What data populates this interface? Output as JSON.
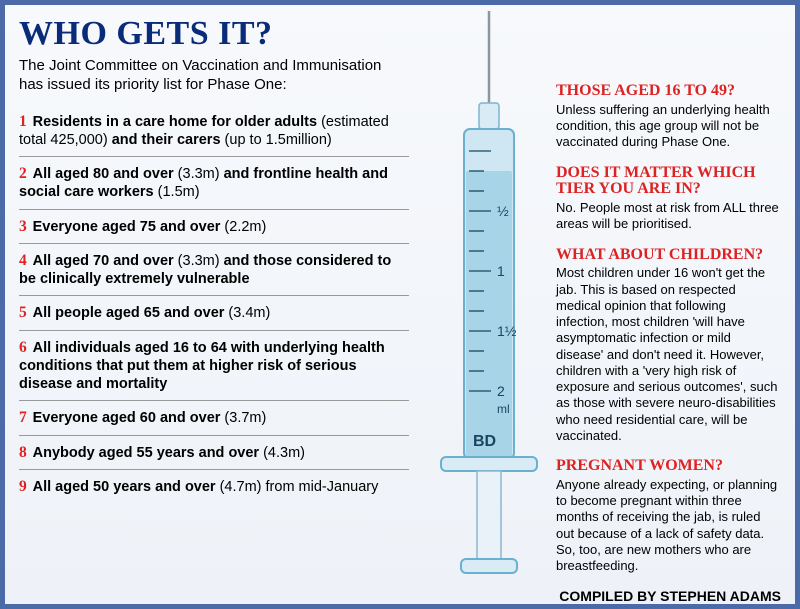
{
  "title": "WHO GETS IT?",
  "title_fontsize": 34,
  "subtitle": "The Joint Committee on Vaccination and Immunisation has issued its priority list for Phase One:",
  "subtitle_fontsize": 15,
  "item_fontsize": 14.5,
  "qa_title_fontsize": 16,
  "qa_body_fontsize": 13,
  "compiled_fontsize": 14,
  "colors": {
    "border": "#4a6ba8",
    "title": "#0a2b7a",
    "red": "#d22",
    "syringe_body": "#bde0ef",
    "syringe_edge": "#6ab0d0",
    "liquid": "#a8d4e8",
    "needle": "#8a96a0"
  },
  "list": [
    {
      "num": "1",
      "bold1": "Residents in a care home for older adults",
      "paren1": " (estimated total 425,000) ",
      "bold2": "and their carers",
      "paren2": " (up to 1.5million)"
    },
    {
      "num": "2",
      "bold1": "All aged 80 and over",
      "paren1": " (3.3m) ",
      "bold2": "and frontline health and social care workers",
      "paren2": " (1.5m)"
    },
    {
      "num": "3",
      "bold1": "Everyone aged 75 and over",
      "paren1": "  (2.2m)",
      "bold2": "",
      "paren2": ""
    },
    {
      "num": "4",
      "bold1": "All aged 70 and over",
      "paren1": " (3.3m) ",
      "bold2": "and those considered to be clinically extremely vulnerable",
      "paren2": ""
    },
    {
      "num": "5",
      "bold1": "All people aged 65 and over",
      "paren1": " (3.4m)",
      "bold2": "",
      "paren2": ""
    },
    {
      "num": "6",
      "bold1": "All individuals aged 16 to 64 with underlying health conditions that put them at higher risk of serious disease and mortality",
      "paren1": "",
      "bold2": "",
      "paren2": ""
    },
    {
      "num": "7",
      "bold1": "Everyone aged 60 and over",
      "paren1": " (3.7m)",
      "bold2": "",
      "paren2": ""
    },
    {
      "num": "8",
      "bold1": "Anybody aged 55 years and over",
      "paren1": " (4.3m)",
      "bold2": "",
      "paren2": ""
    },
    {
      "num": "9",
      "bold1": "All aged 50 years and over",
      "paren1": " (4.7m) from mid-January",
      "bold2": "",
      "paren2": ""
    }
  ],
  "qa": [
    {
      "title": "THOSE AGED 16 TO 49?",
      "body": "Unless suffering an underlying health condition, this age group will not be vaccinated during Phase One."
    },
    {
      "title": "DOES IT MATTER WHICH TIER YOU ARE IN?",
      "body": "No. People most at risk from ALL three areas will be prioritised."
    },
    {
      "title": "WHAT ABOUT CHILDREN?",
      "body": "Most children under 16 won't get the jab. This is based on respected medical opinion that following infection, most children 'will have asymptomatic infection or mild disease' and don't need it. However, children with a 'very high risk of exposure and serious outcomes', such as those with severe neuro-disabilities who need residential care, will be vaccinated."
    },
    {
      "title": "PREGNANT WOMEN?",
      "body": "Anyone already expecting, or planning to become pregnant within three months of receiving the jab, is ruled out because of a lack of safety data. So, too, are new mothers who are breastfeeding."
    }
  ],
  "compiled": "COMPILED BY STEPHEN ADAMS",
  "syringe": {
    "marks": [
      "½",
      "1",
      "1½",
      "2"
    ],
    "ml_label": "ml",
    "brand": "BD"
  }
}
